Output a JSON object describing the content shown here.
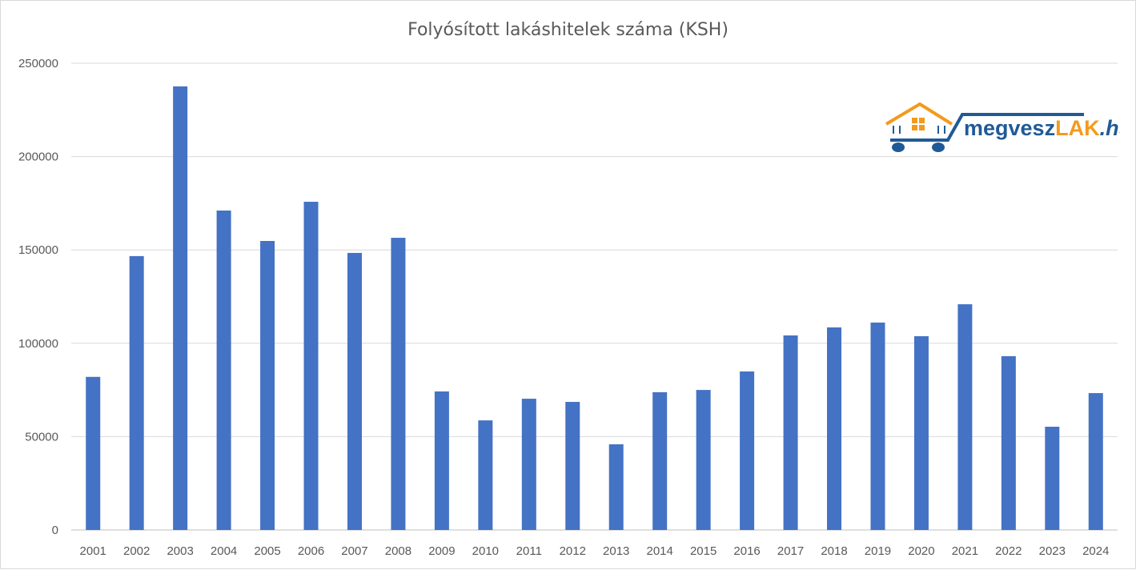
{
  "chart_data": {
    "type": "bar",
    "title": "Folyósított lakáshitelek száma (KSH)",
    "xlabel": "",
    "ylabel": "",
    "categories": [
      "2001",
      "2002",
      "2003",
      "2004",
      "2005",
      "2006",
      "2007",
      "2008",
      "2009",
      "2010",
      "2011",
      "2012",
      "2013",
      "2014",
      "2015",
      "2016",
      "2017",
      "2018",
      "2019",
      "2020",
      "2021",
      "2022",
      "2023",
      "2024"
    ],
    "values": [
      82000,
      146700,
      237600,
      171100,
      154800,
      175800,
      148400,
      156500,
      74200,
      58700,
      70300,
      68600,
      45900,
      73800,
      75000,
      84900,
      104200,
      108500,
      111100,
      103800,
      120900,
      93100,
      55300,
      73300
    ],
    "ylim": [
      0,
      250000
    ],
    "yticks": [
      "0",
      "50000",
      "100000",
      "150000",
      "200000",
      "250000"
    ],
    "grid": true,
    "legend": "none",
    "bar_color": "#4472C4"
  },
  "logo": {
    "text_main": "megvesz",
    "text_accent": "LAK",
    "text_suffix": ".hu",
    "blue": "#1f5a96",
    "orange": "#f39a1e"
  }
}
